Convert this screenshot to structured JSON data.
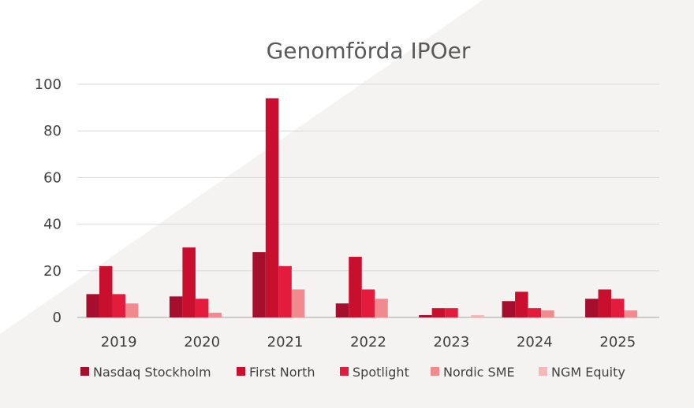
{
  "chart_data": {
    "type": "bar",
    "title": "Genomförda IPOer",
    "xlabel": "",
    "ylabel": "",
    "categories": [
      "2019",
      "2020",
      "2021",
      "2022",
      "2023",
      "2024",
      "2025"
    ],
    "ylim": [
      0,
      100
    ],
    "yticks": [
      0,
      20,
      40,
      60,
      80,
      100
    ],
    "grid": true,
    "legend_position": "bottom",
    "series": [
      {
        "name": "Nasdaq Stockholm",
        "color": "#a50f2d",
        "values": [
          10,
          9,
          28,
          6,
          1,
          7,
          8
        ]
      },
      {
        "name": "First North",
        "color": "#c8102e",
        "values": [
          22,
          30,
          94,
          26,
          4,
          11,
          12
        ]
      },
      {
        "name": "Spotlight",
        "color": "#e31b3c",
        "values": [
          10,
          8,
          22,
          12,
          4,
          4,
          8
        ]
      },
      {
        "name": "Nordic SME",
        "color": "#f08a8e",
        "values": [
          6,
          2,
          12,
          8,
          0,
          3,
          3
        ]
      },
      {
        "name": "NGM Equity",
        "color": "#f6b7bb",
        "values": [
          0,
          0,
          0,
          0,
          1,
          0,
          0
        ]
      }
    ]
  }
}
